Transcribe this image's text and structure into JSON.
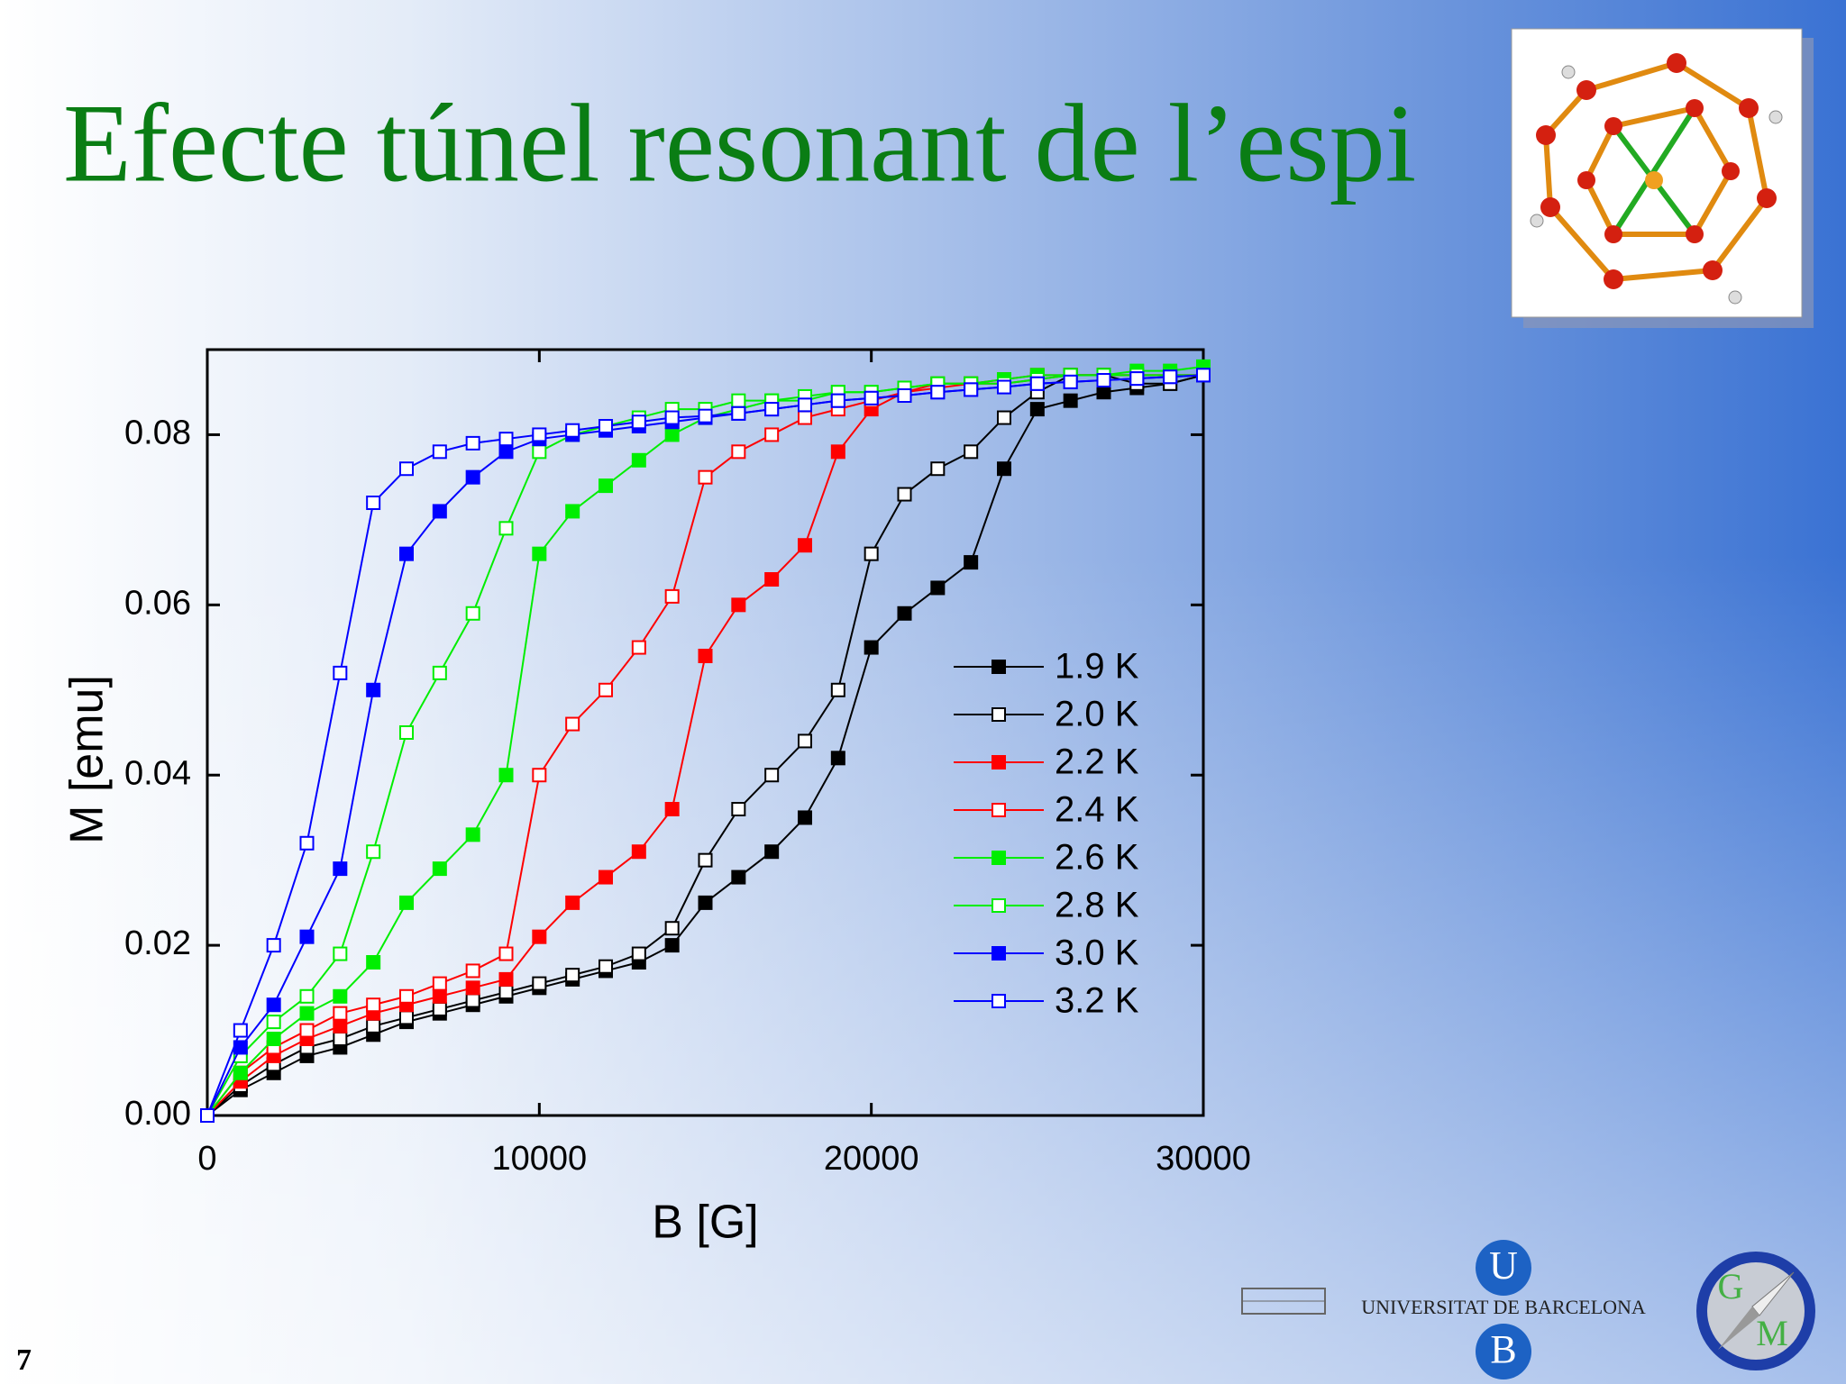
{
  "title": "Efecte túnel resonant de l’espi",
  "page_number": "7",
  "footer": {
    "university": "UNIVERSITAT DE BARCELONA",
    "u": "U",
    "b": "B",
    "g": "G",
    "m": "M"
  },
  "chart_data": {
    "type": "line",
    "xlabel": "B [G]",
    "ylabel": "M [emu]",
    "xlim": [
      0,
      30000
    ],
    "ylim": [
      0,
      0.09
    ],
    "xticks": [
      0,
      10000,
      20000,
      30000
    ],
    "yticks": [
      {
        "value": 0,
        "label": "0.00"
      },
      0.02,
      0.04,
      0.06,
      0.08
    ],
    "legend": "right",
    "x": [
      0,
      1000,
      2000,
      3000,
      4000,
      5000,
      6000,
      7000,
      8000,
      9000,
      10000,
      11000,
      12000,
      13000,
      14000,
      15000,
      16000,
      17000,
      18000,
      19000,
      20000,
      21000,
      22000,
      23000,
      24000,
      25000,
      26000,
      27000,
      28000,
      29000,
      30000
    ],
    "series": [
      {
        "name": "1.9 K",
        "color": "#000000",
        "marker": "filled",
        "values": [
          0,
          0.003,
          0.005,
          0.007,
          0.008,
          0.0095,
          0.011,
          0.012,
          0.013,
          0.014,
          0.015,
          0.016,
          0.017,
          0.018,
          0.02,
          0.025,
          0.028,
          0.031,
          0.035,
          0.042,
          0.055,
          0.059,
          0.062,
          0.065,
          0.076,
          0.083,
          0.084,
          0.085,
          0.0855,
          0.086,
          0.087
        ]
      },
      {
        "name": "2.0 K",
        "color": "#000000",
        "marker": "open",
        "values": [
          0,
          0.0035,
          0.006,
          0.008,
          0.009,
          0.0105,
          0.0115,
          0.0125,
          0.0135,
          0.0145,
          0.0155,
          0.0165,
          0.0175,
          0.019,
          0.022,
          0.03,
          0.036,
          0.04,
          0.044,
          0.05,
          0.066,
          0.073,
          0.076,
          0.078,
          0.082,
          0.085,
          0.087,
          0.087,
          0.086,
          0.086,
          0.087
        ]
      },
      {
        "name": "2.2 K",
        "color": "#ff0000",
        "marker": "filled",
        "values": [
          0,
          0.004,
          0.007,
          0.009,
          0.0105,
          0.012,
          0.013,
          0.014,
          0.015,
          0.016,
          0.021,
          0.025,
          0.028,
          0.031,
          0.036,
          0.054,
          0.06,
          0.063,
          0.067,
          0.078,
          0.083,
          0.085,
          0.086,
          0.086,
          0.0865,
          0.087,
          0.087,
          0.087,
          0.087,
          0.087,
          0.087
        ]
      },
      {
        "name": "2.4 K",
        "color": "#ff0000",
        "marker": "open",
        "values": [
          0,
          0.005,
          0.008,
          0.01,
          0.012,
          0.013,
          0.014,
          0.0155,
          0.017,
          0.019,
          0.04,
          0.046,
          0.05,
          0.055,
          0.061,
          0.075,
          0.078,
          0.08,
          0.082,
          0.083,
          0.084,
          0.085,
          0.0855,
          0.086,
          0.086,
          0.0865,
          0.087,
          0.087,
          0.087,
          0.087,
          0.087
        ]
      },
      {
        "name": "2.6 K",
        "color": "#00ee00",
        "marker": "filled",
        "values": [
          0,
          0.005,
          0.009,
          0.012,
          0.014,
          0.018,
          0.025,
          0.029,
          0.033,
          0.04,
          0.066,
          0.071,
          0.074,
          0.077,
          0.08,
          0.082,
          0.083,
          0.084,
          0.084,
          0.085,
          0.085,
          0.0855,
          0.086,
          0.086,
          0.0865,
          0.087,
          0.087,
          0.087,
          0.0875,
          0.0875,
          0.088
        ]
      },
      {
        "name": "2.8 K",
        "color": "#00ee00",
        "marker": "open",
        "values": [
          0,
          0.007,
          0.011,
          0.014,
          0.019,
          0.031,
          0.045,
          0.052,
          0.059,
          0.069,
          0.078,
          0.08,
          0.081,
          0.082,
          0.083,
          0.083,
          0.084,
          0.084,
          0.0845,
          0.085,
          0.085,
          0.0855,
          0.086,
          0.086,
          0.086,
          0.0865,
          0.087,
          0.087,
          0.087,
          0.087,
          0.087
        ]
      },
      {
        "name": "3.0 K",
        "color": "#0000ff",
        "marker": "filled",
        "values": [
          0,
          0.008,
          0.013,
          0.021,
          0.029,
          0.05,
          0.066,
          0.071,
          0.075,
          0.078,
          0.0795,
          0.08,
          0.0805,
          0.081,
          0.0815,
          0.082,
          0.0825,
          0.083,
          0.0835,
          0.084,
          0.0843,
          0.0846,
          0.085,
          0.0853,
          0.0856,
          0.086,
          0.0862,
          0.0864,
          0.0866,
          0.0868,
          0.087
        ]
      },
      {
        "name": "3.2 K",
        "color": "#0000ff",
        "marker": "open",
        "values": [
          0,
          0.01,
          0.02,
          0.032,
          0.052,
          0.072,
          0.076,
          0.078,
          0.079,
          0.0795,
          0.08,
          0.0805,
          0.081,
          0.0815,
          0.082,
          0.0822,
          0.0825,
          0.083,
          0.0835,
          0.084,
          0.0843,
          0.0846,
          0.085,
          0.0853,
          0.0856,
          0.086,
          0.0862,
          0.0864,
          0.0866,
          0.0868,
          0.087
        ]
      }
    ]
  }
}
